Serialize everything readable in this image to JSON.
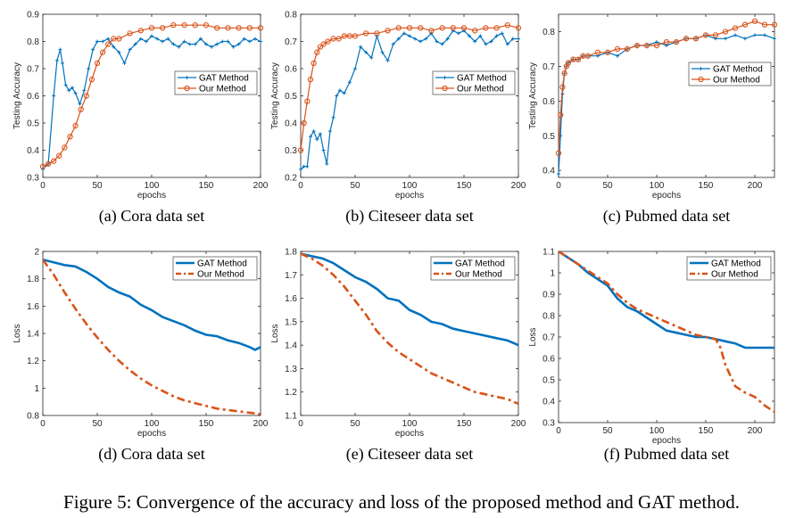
{
  "figure_caption": "Figure 5: Convergence of the accuracy and loss of the proposed method and GAT method.",
  "colors": {
    "gat": "#0072BD",
    "ours": "#D95319"
  },
  "chart_data": [
    {
      "id": "a",
      "type": "line",
      "subtitle": "(a)  Cora data set",
      "xlabel": "epochs",
      "ylabel": "Testing Accuracy",
      "xlim": [
        0,
        200
      ],
      "ylim": [
        0.3,
        0.9
      ],
      "xticks": [
        0,
        50,
        100,
        150,
        200
      ],
      "xtick_labels": [
        "0",
        "50",
        "100",
        "150",
        "200"
      ],
      "yticks": [
        0.3,
        0.4,
        0.5,
        0.6,
        0.7,
        0.8,
        0.9
      ],
      "ytick_labels": [
        "0.3",
        "0.4",
        "0.5",
        "0.6",
        "0.7",
        "0.8",
        "0.9"
      ],
      "legend": "right",
      "series": [
        {
          "name": "GAT Method",
          "style": "gat_marker",
          "x": [
            0,
            5,
            10,
            13,
            16,
            18,
            21,
            24,
            27,
            30,
            34,
            38,
            42,
            46,
            50,
            55,
            60,
            65,
            70,
            75,
            80,
            85,
            90,
            95,
            100,
            105,
            110,
            115,
            120,
            125,
            130,
            135,
            140,
            145,
            150,
            155,
            160,
            165,
            170,
            175,
            180,
            185,
            190,
            195,
            200
          ],
          "y": [
            0.33,
            0.35,
            0.6,
            0.73,
            0.77,
            0.72,
            0.64,
            0.62,
            0.63,
            0.61,
            0.57,
            0.62,
            0.7,
            0.77,
            0.8,
            0.8,
            0.81,
            0.78,
            0.76,
            0.72,
            0.77,
            0.79,
            0.81,
            0.8,
            0.82,
            0.81,
            0.8,
            0.81,
            0.79,
            0.78,
            0.8,
            0.79,
            0.79,
            0.81,
            0.79,
            0.78,
            0.79,
            0.8,
            0.8,
            0.78,
            0.79,
            0.81,
            0.8,
            0.81,
            0.8
          ]
        },
        {
          "name": "Our Method",
          "style": "ours_circle",
          "x": [
            0,
            5,
            10,
            15,
            20,
            25,
            30,
            35,
            40,
            45,
            50,
            55,
            60,
            65,
            70,
            80,
            90,
            100,
            110,
            120,
            130,
            140,
            150,
            160,
            170,
            180,
            190,
            200
          ],
          "y": [
            0.34,
            0.35,
            0.36,
            0.38,
            0.41,
            0.45,
            0.49,
            0.55,
            0.6,
            0.66,
            0.72,
            0.76,
            0.79,
            0.81,
            0.81,
            0.83,
            0.84,
            0.85,
            0.85,
            0.86,
            0.86,
            0.86,
            0.86,
            0.85,
            0.85,
            0.85,
            0.85,
            0.85
          ]
        }
      ]
    },
    {
      "id": "b",
      "type": "line",
      "subtitle": "(b)  Citeseer data set",
      "xlabel": "epochs",
      "ylabel": "Testing Accuracy",
      "xlim": [
        0,
        200
      ],
      "ylim": [
        0.2,
        0.8
      ],
      "xticks": [
        0,
        50,
        100,
        150,
        200
      ],
      "xtick_labels": [
        "0",
        "50",
        "100",
        "150",
        "200"
      ],
      "yticks": [
        0.2,
        0.3,
        0.4,
        0.5,
        0.6,
        0.7,
        0.8
      ],
      "ytick_labels": [
        "0.2",
        "0.3",
        "0.4",
        "0.5",
        "0.6",
        "0.7",
        "0.8"
      ],
      "legend": "right",
      "series": [
        {
          "name": "GAT Method",
          "style": "gat_marker",
          "x": [
            0,
            3,
            6,
            9,
            12,
            15,
            18,
            21,
            24,
            27,
            30,
            33,
            36,
            40,
            45,
            50,
            55,
            60,
            65,
            70,
            75,
            80,
            85,
            90,
            95,
            100,
            105,
            110,
            115,
            120,
            125,
            130,
            135,
            140,
            145,
            150,
            155,
            160,
            165,
            170,
            175,
            180,
            185,
            190,
            195,
            200
          ],
          "y": [
            0.23,
            0.24,
            0.24,
            0.35,
            0.37,
            0.34,
            0.36,
            0.3,
            0.25,
            0.37,
            0.42,
            0.5,
            0.52,
            0.51,
            0.55,
            0.6,
            0.68,
            0.66,
            0.64,
            0.72,
            0.66,
            0.63,
            0.69,
            0.71,
            0.73,
            0.72,
            0.71,
            0.7,
            0.71,
            0.73,
            0.7,
            0.69,
            0.71,
            0.74,
            0.73,
            0.74,
            0.72,
            0.7,
            0.72,
            0.69,
            0.7,
            0.72,
            0.73,
            0.69,
            0.71,
            0.71
          ]
        },
        {
          "name": "Our Method",
          "style": "ours_circle",
          "x": [
            0,
            3,
            6,
            9,
            12,
            15,
            18,
            21,
            25,
            30,
            35,
            40,
            45,
            50,
            60,
            70,
            80,
            90,
            100,
            110,
            120,
            130,
            140,
            150,
            160,
            170,
            180,
            190,
            200
          ],
          "y": [
            0.3,
            0.4,
            0.48,
            0.56,
            0.62,
            0.66,
            0.68,
            0.69,
            0.7,
            0.71,
            0.71,
            0.72,
            0.72,
            0.72,
            0.73,
            0.73,
            0.74,
            0.75,
            0.75,
            0.75,
            0.74,
            0.75,
            0.75,
            0.75,
            0.74,
            0.75,
            0.75,
            0.76,
            0.75
          ]
        }
      ]
    },
    {
      "id": "c",
      "type": "line",
      "subtitle": "(c)  Pubmed data set",
      "xlabel": "epochs",
      "ylabel": "Testing Accuracy",
      "xlim": [
        0,
        220
      ],
      "ylim": [
        0.38,
        0.85
      ],
      "xticks": [
        0,
        50,
        100,
        150,
        200
      ],
      "xtick_labels": [
        "0",
        "50",
        "100",
        "150",
        "200"
      ],
      "yticks": [
        0.4,
        0.5,
        0.6,
        0.7,
        0.8
      ],
      "ytick_labels": [
        "0.4",
        "0.5",
        "0.6",
        "0.7",
        "0.8"
      ],
      "legend": "top-right",
      "series": [
        {
          "name": "GAT Method",
          "style": "gat_marker",
          "x": [
            0,
            2,
            4,
            6,
            8,
            10,
            15,
            20,
            25,
            30,
            40,
            50,
            60,
            70,
            80,
            90,
            100,
            110,
            120,
            130,
            140,
            150,
            160,
            170,
            180,
            190,
            200,
            210,
            220
          ],
          "y": [
            0.39,
            0.5,
            0.62,
            0.68,
            0.7,
            0.71,
            0.72,
            0.72,
            0.73,
            0.73,
            0.73,
            0.74,
            0.73,
            0.75,
            0.76,
            0.76,
            0.77,
            0.76,
            0.77,
            0.78,
            0.78,
            0.79,
            0.78,
            0.78,
            0.79,
            0.78,
            0.79,
            0.79,
            0.78
          ]
        },
        {
          "name": "Our Method",
          "style": "ours_circle",
          "x": [
            0,
            2,
            4,
            6,
            8,
            10,
            15,
            20,
            25,
            30,
            40,
            50,
            60,
            70,
            80,
            90,
            100,
            110,
            120,
            130,
            140,
            150,
            160,
            170,
            180,
            190,
            200,
            210,
            220
          ],
          "y": [
            0.45,
            0.56,
            0.64,
            0.68,
            0.7,
            0.71,
            0.72,
            0.72,
            0.73,
            0.73,
            0.74,
            0.74,
            0.75,
            0.75,
            0.76,
            0.76,
            0.76,
            0.77,
            0.77,
            0.78,
            0.78,
            0.79,
            0.79,
            0.8,
            0.81,
            0.82,
            0.83,
            0.82,
            0.82
          ]
        }
      ]
    },
    {
      "id": "d",
      "type": "line",
      "subtitle": "(d)  Cora data set",
      "xlabel": "epochs",
      "ylabel": "Loss",
      "xlim": [
        0,
        200
      ],
      "ylim": [
        0.8,
        2.0
      ],
      "xticks": [
        0,
        50,
        100,
        150,
        200
      ],
      "xtick_labels": [
        "0",
        "50",
        "100",
        "150",
        "200"
      ],
      "yticks": [
        0.8,
        1.0,
        1.2,
        1.4,
        1.6,
        1.8,
        2.0
      ],
      "ytick_labels": [
        "0.8",
        "1",
        "1.2",
        "1.4",
        "1.6",
        "1.8",
        "2"
      ],
      "legend": "top-right",
      "series": [
        {
          "name": "GAT Method",
          "style": "gat_solid",
          "x": [
            0,
            10,
            20,
            30,
            40,
            50,
            60,
            70,
            80,
            90,
            100,
            110,
            120,
            130,
            140,
            150,
            160,
            170,
            180,
            190,
            195,
            200
          ],
          "y": [
            1.94,
            1.92,
            1.9,
            1.89,
            1.85,
            1.8,
            1.74,
            1.7,
            1.67,
            1.61,
            1.57,
            1.52,
            1.49,
            1.46,
            1.42,
            1.39,
            1.38,
            1.35,
            1.33,
            1.3,
            1.28,
            1.3
          ]
        },
        {
          "name": "Our Method",
          "style": "ours_dashdot",
          "x": [
            0,
            10,
            20,
            30,
            40,
            50,
            60,
            70,
            80,
            90,
            100,
            110,
            120,
            130,
            140,
            150,
            160,
            170,
            180,
            190,
            200
          ],
          "y": [
            1.94,
            1.83,
            1.7,
            1.58,
            1.47,
            1.37,
            1.28,
            1.2,
            1.13,
            1.07,
            1.02,
            0.98,
            0.94,
            0.91,
            0.89,
            0.87,
            0.85,
            0.84,
            0.83,
            0.82,
            0.81
          ]
        }
      ]
    },
    {
      "id": "e",
      "type": "line",
      "subtitle": "(e)  Citeseer data set",
      "xlabel": "epochs",
      "ylabel": "Loss",
      "xlim": [
        0,
        200
      ],
      "ylim": [
        1.1,
        1.8
      ],
      "xticks": [
        0,
        50,
        100,
        150,
        200
      ],
      "xtick_labels": [
        "0",
        "50",
        "100",
        "150",
        "200"
      ],
      "yticks": [
        1.1,
        1.2,
        1.3,
        1.4,
        1.5,
        1.6,
        1.7,
        1.8
      ],
      "ytick_labels": [
        "1.1",
        "1.2",
        "1.3",
        "1.4",
        "1.5",
        "1.6",
        "1.7",
        "1.8"
      ],
      "legend": "top-right",
      "series": [
        {
          "name": "GAT Method",
          "style": "gat_solid",
          "x": [
            0,
            10,
            20,
            30,
            40,
            50,
            60,
            70,
            80,
            90,
            100,
            110,
            120,
            130,
            140,
            150,
            160,
            170,
            180,
            190,
            200
          ],
          "y": [
            1.79,
            1.78,
            1.77,
            1.75,
            1.72,
            1.69,
            1.67,
            1.64,
            1.6,
            1.59,
            1.55,
            1.53,
            1.5,
            1.49,
            1.47,
            1.46,
            1.45,
            1.44,
            1.43,
            1.42,
            1.4
          ]
        },
        {
          "name": "Our Method",
          "style": "ours_dashdot",
          "x": [
            0,
            10,
            20,
            30,
            40,
            50,
            60,
            70,
            80,
            90,
            100,
            110,
            120,
            130,
            140,
            150,
            160,
            170,
            180,
            190,
            200
          ],
          "y": [
            1.79,
            1.77,
            1.74,
            1.7,
            1.65,
            1.59,
            1.53,
            1.46,
            1.41,
            1.37,
            1.34,
            1.31,
            1.28,
            1.26,
            1.24,
            1.22,
            1.2,
            1.19,
            1.18,
            1.17,
            1.15
          ]
        }
      ]
    },
    {
      "id": "f",
      "type": "line",
      "subtitle": "(f)  Pubmed data set",
      "xlabel": "epochs",
      "ylabel": "Loss",
      "xlim": [
        0,
        220
      ],
      "ylim": [
        0.3,
        1.1
      ],
      "xticks": [
        0,
        50,
        100,
        150,
        200
      ],
      "xtick_labels": [
        "0",
        "50",
        "100",
        "150",
        "200"
      ],
      "yticks": [
        0.3,
        0.4,
        0.5,
        0.6,
        0.7,
        0.8,
        0.9,
        1.0,
        1.1
      ],
      "ytick_labels": [
        "0.3",
        "0.4",
        "0.5",
        "0.6",
        "0.7",
        "0.8",
        "0.9",
        "1",
        "1.1"
      ],
      "legend": "top-right",
      "series": [
        {
          "name": "GAT Method",
          "style": "gat_solid",
          "x": [
            0,
            10,
            20,
            30,
            40,
            50,
            60,
            70,
            80,
            90,
            100,
            110,
            120,
            130,
            140,
            150,
            160,
            170,
            180,
            190,
            200,
            210,
            220
          ],
          "y": [
            1.1,
            1.07,
            1.04,
            1.0,
            0.97,
            0.94,
            0.88,
            0.84,
            0.82,
            0.79,
            0.76,
            0.73,
            0.72,
            0.71,
            0.7,
            0.7,
            0.69,
            0.68,
            0.67,
            0.65,
            0.65,
            0.65,
            0.65
          ]
        },
        {
          "name": "Our Method",
          "style": "ours_dashdot",
          "x": [
            0,
            10,
            20,
            30,
            40,
            50,
            60,
            70,
            80,
            90,
            100,
            110,
            120,
            130,
            140,
            150,
            160,
            165,
            170,
            175,
            180,
            190,
            200,
            210,
            220
          ],
          "y": [
            1.1,
            1.07,
            1.04,
            1.01,
            0.98,
            0.95,
            0.9,
            0.86,
            0.83,
            0.81,
            0.79,
            0.77,
            0.75,
            0.73,
            0.71,
            0.7,
            0.69,
            0.65,
            0.57,
            0.52,
            0.47,
            0.44,
            0.42,
            0.38,
            0.35
          ]
        }
      ]
    }
  ]
}
